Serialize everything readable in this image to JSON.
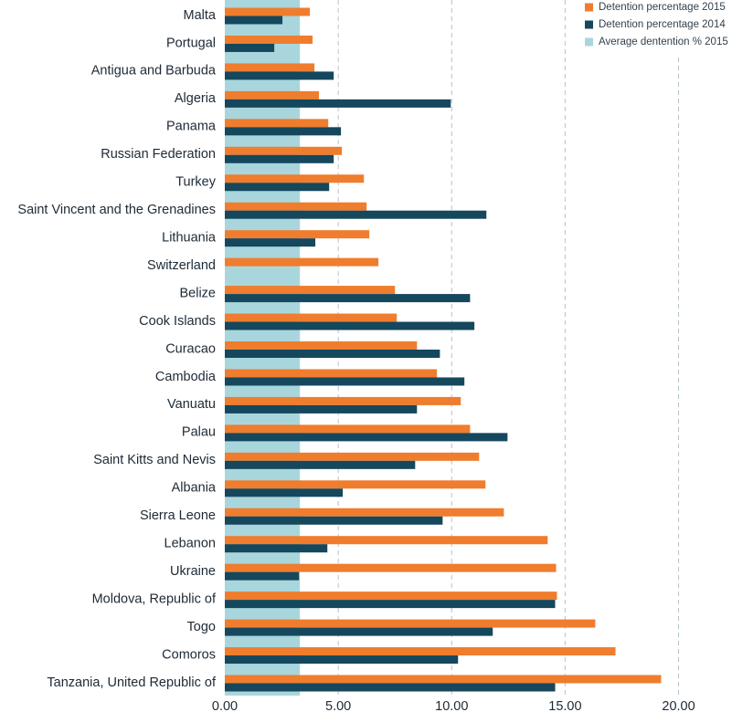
{
  "chart_data": {
    "type": "bar",
    "orientation": "horizontal",
    "categories": [
      "Malta",
      "Portugal",
      "Antigua and Barbuda",
      "Algeria",
      "Panama",
      "Russian Federation",
      "Turkey",
      "Saint Vincent and the Grenadines",
      "Lithuania",
      "Switzerland",
      "Belize",
      "Cook Islands",
      "Curacao",
      "Cambodia",
      "Vanuatu",
      "Palau",
      "Saint Kitts and Nevis",
      "Albania",
      "Sierra Leone",
      "Lebanon",
      "Ukraine",
      "Moldova, Republic of",
      "Togo",
      "Comoros",
      "Tanzania, United Republic of"
    ],
    "series": [
      {
        "name": "Detention percentage 2015",
        "color": "#ef7d2d",
        "values": [
          3.75,
          3.87,
          3.95,
          4.15,
          4.56,
          5.16,
          6.13,
          6.25,
          6.37,
          6.77,
          7.5,
          7.58,
          8.47,
          9.35,
          10.4,
          10.81,
          11.21,
          11.49,
          12.3,
          14.23,
          14.6,
          14.64,
          16.33,
          17.22,
          19.23
        ]
      },
      {
        "name": "Detention percentage 2014",
        "color": "#15475d",
        "values": [
          2.54,
          2.18,
          4.8,
          9.96,
          5.12,
          4.8,
          4.6,
          11.53,
          3.99,
          null,
          10.81,
          11.0,
          9.48,
          10.56,
          8.47,
          12.46,
          8.39,
          5.2,
          9.6,
          4.52,
          3.27,
          14.56,
          11.81,
          10.28,
          14.56
        ]
      }
    ],
    "average": {
      "name": "Average dentention % 2015",
      "color": "#a9d6dd",
      "value": 3.31
    },
    "xlim": [
      0,
      20.3
    ],
    "xticks": [
      {
        "value": 0,
        "label": "0.00"
      },
      {
        "value": 5,
        "label": "5.00"
      },
      {
        "value": 10,
        "label": "10.00"
      },
      {
        "value": 15,
        "label": "15.00"
      },
      {
        "value": 20,
        "label": "20.00"
      }
    ],
    "grid": true,
    "legend": "top-right"
  }
}
